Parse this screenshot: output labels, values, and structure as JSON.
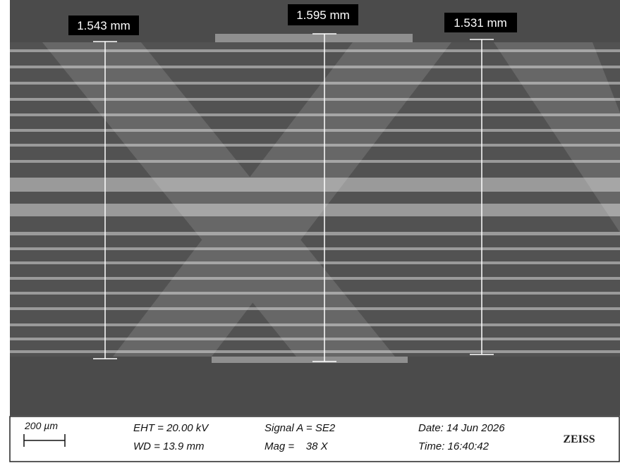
{
  "measurements": [
    {
      "label": "1.543 mm"
    },
    {
      "label": "1.595 mm"
    },
    {
      "label": "1.531 mm"
    }
  ],
  "info_bar": {
    "scale_bar": "200 µm",
    "eht": "EHT = 20.00 kV",
    "wd": "WD = 13.9 mm",
    "signal": "Signal A = SE2",
    "mag": "Mag =    38 X",
    "date": "Date: 14 Jun 2026",
    "time": "Time: 16:40:42",
    "logo": "ZEISS"
  }
}
